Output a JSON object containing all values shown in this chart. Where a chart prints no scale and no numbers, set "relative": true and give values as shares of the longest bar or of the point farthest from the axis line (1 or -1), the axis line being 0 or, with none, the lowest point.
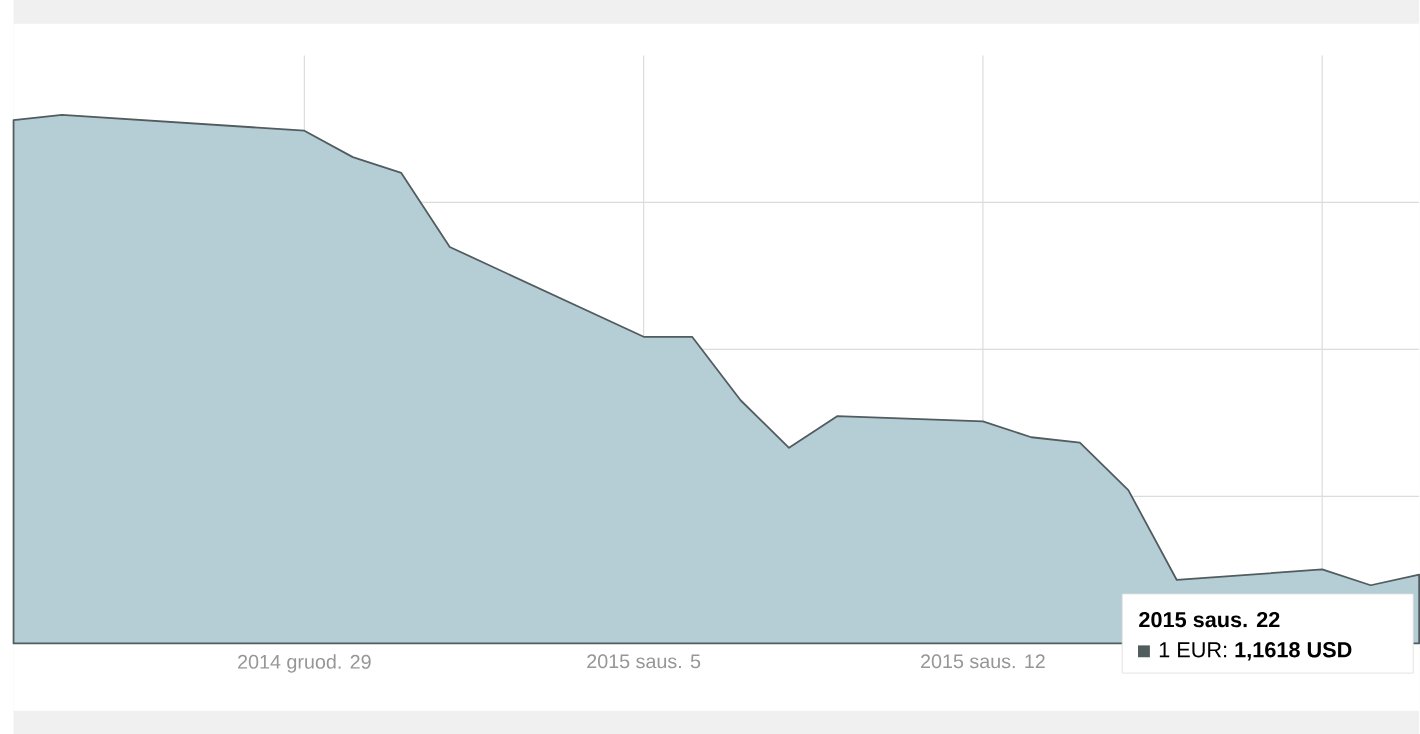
{
  "chart_data": {
    "type": "area",
    "relative": true,
    "x": [
      "2014-12-23",
      "2014-12-24",
      "2014-12-29",
      "2014-12-30",
      "2014-12-31",
      "2015-01-01",
      "2015-01-05",
      "2015-01-06",
      "2015-01-07",
      "2015-01-08",
      "2015-01-09",
      "2015-01-12",
      "2015-01-13",
      "2015-01-14",
      "2015-01-15",
      "2015-01-16",
      "2015-01-19",
      "2015-01-20",
      "2015-01-21"
    ],
    "series": [
      {
        "color": "#b5cdd4",
        "values": [
          0.99,
          1,
          0.97,
          0.92,
          0.89,
          0.75,
          0.58,
          0.58,
          0.46,
          0.37,
          0.43,
          0.42,
          0.39,
          0.38,
          0.29,
          0.12,
          0.14,
          0.11,
          0.13
        ]
      }
    ],
    "xlim": [
      "2014-12-23",
      "2015-01-21"
    ],
    "xticks": [
      {
        "value": "2014-12-29",
        "label": "2014 gruod. 29"
      },
      {
        "value": "2015-01-05",
        "label": "2015 saus. 5"
      },
      {
        "value": "2015-01-12",
        "label": "2015 saus. 12"
      },
      {
        "value": "2015-01-19",
        "label": null
      }
    ],
    "grid": true,
    "annotations": [
      "2015 saus. 22",
      "1 EUR: **1,1618 USD**"
    ]
  }
}
